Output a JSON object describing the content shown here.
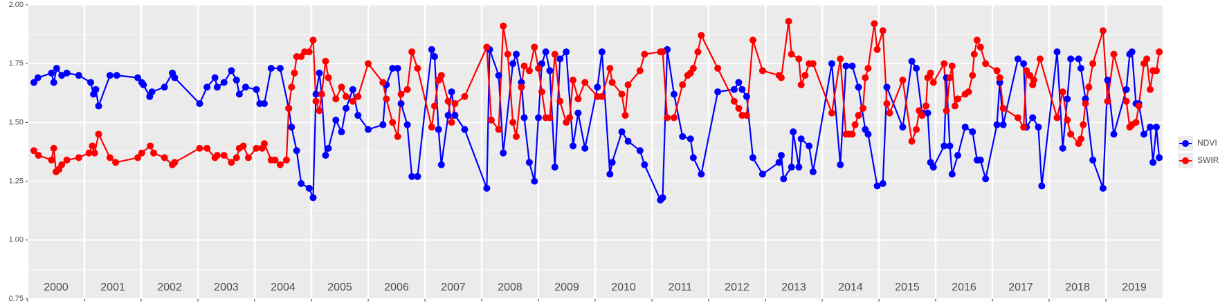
{
  "chart_data": {
    "type": "line",
    "xlim": [
      2000,
      2020
    ],
    "xticks": [
      2000,
      2001,
      2002,
      2003,
      2004,
      2005,
      2006,
      2007,
      2008,
      2009,
      2010,
      2011,
      2012,
      2013,
      2014,
      2015,
      2016,
      2017,
      2018,
      2019
    ],
    "ylim": [
      0.75,
      2.0
    ],
    "yticks": [
      {
        "value": 0.75,
        "label": "0.75"
      },
      {
        "value": 1.0,
        "label": "1.00"
      },
      {
        "value": 1.25,
        "label": "1.25"
      },
      {
        "value": 1.5,
        "label": "1.50"
      },
      {
        "value": 1.75,
        "label": "1.75"
      },
      {
        "value": 2.0,
        "label": "2.00"
      }
    ],
    "grid": true,
    "legend": "right",
    "series": [
      {
        "name": "NDVI",
        "color": "#0000ff",
        "x": [
          2000.11,
          2000.18,
          2000.42,
          2000.46,
          2000.51,
          2000.6,
          2000.69,
          2000.9,
          2001.11,
          2001.16,
          2001.2,
          2001.25,
          2001.45,
          2001.57,
          2001.94,
          2002.01,
          2002.04,
          2002.15,
          2002.19,
          2002.41,
          2002.55,
          2002.59,
          2003.03,
          2003.16,
          2003.3,
          2003.34,
          2003.46,
          2003.59,
          2003.68,
          2003.73,
          2003.84,
          2004.03,
          2004.09,
          2004.17,
          2004.29,
          2004.45,
          2004.6,
          2004.65,
          2004.74,
          2004.82,
          2004.96,
          2005.03,
          2005.08,
          2005.14,
          2005.18,
          2005.25,
          2005.3,
          2005.43,
          2005.53,
          2005.61,
          2005.73,
          2005.82,
          2006.0,
          2006.26,
          2006.32,
          2006.43,
          2006.52,
          2006.58,
          2006.69,
          2006.77,
          2006.87,
          2007.12,
          2007.17,
          2007.24,
          2007.29,
          2007.41,
          2007.47,
          2007.53,
          2007.7,
          2008.09,
          2008.14,
          2008.3,
          2008.38,
          2008.55,
          2008.61,
          2008.7,
          2008.75,
          2008.84,
          2008.93,
          2009.0,
          2009.06,
          2009.13,
          2009.2,
          2009.29,
          2009.38,
          2009.49,
          2009.61,
          2009.7,
          2009.82,
          2010.04,
          2010.12,
          2010.26,
          2010.3,
          2010.47,
          2010.58,
          2010.79,
          2010.87,
          2011.15,
          2011.19,
          2011.27,
          2011.39,
          2011.54,
          2011.68,
          2011.73,
          2011.87,
          2012.16,
          2012.45,
          2012.53,
          2012.59,
          2012.67,
          2012.78,
          2012.95,
          2013.24,
          2013.28,
          2013.32,
          2013.46,
          2013.49,
          2013.59,
          2013.63,
          2013.77,
          2013.84,
          2014.17,
          2014.32,
          2014.42,
          2014.53,
          2014.64,
          2014.76,
          2014.81,
          2014.97,
          2015.07,
          2015.14,
          2015.42,
          2015.58,
          2015.66,
          2015.76,
          2015.86,
          2015.91,
          2015.96,
          2016.15,
          2016.19,
          2016.25,
          2016.29,
          2016.39,
          2016.52,
          2016.65,
          2016.73,
          2016.79,
          2016.88,
          2017.08,
          2017.13,
          2017.19,
          2017.45,
          2017.55,
          2017.6,
          2017.71,
          2017.81,
          2017.87,
          2018.14,
          2018.24,
          2018.32,
          2018.38,
          2018.52,
          2018.56,
          2018.64,
          2018.77,
          2018.95,
          2019.03,
          2019.14,
          2019.36,
          2019.42,
          2019.46,
          2019.53,
          2019.58,
          2019.67,
          2019.78,
          2019.83,
          2019.89,
          2019.94
        ],
        "values": [
          1.67,
          1.69,
          1.71,
          1.67,
          1.73,
          1.7,
          1.71,
          1.7,
          1.67,
          1.62,
          1.64,
          1.57,
          1.7,
          1.7,
          1.69,
          1.67,
          1.66,
          1.61,
          1.63,
          1.65,
          1.71,
          1.69,
          1.58,
          1.65,
          1.69,
          1.65,
          1.67,
          1.72,
          1.68,
          1.62,
          1.65,
          1.64,
          1.58,
          1.58,
          1.73,
          1.73,
          1.56,
          1.48,
          1.38,
          1.24,
          1.22,
          1.18,
          1.62,
          1.71,
          1.62,
          1.36,
          1.39,
          1.51,
          1.46,
          1.56,
          1.64,
          1.53,
          1.47,
          1.49,
          1.66,
          1.73,
          1.73,
          1.58,
          1.49,
          1.27,
          1.27,
          1.81,
          1.78,
          1.47,
          1.32,
          1.53,
          1.63,
          1.53,
          1.47,
          1.22,
          1.81,
          1.7,
          1.37,
          1.75,
          1.79,
          1.67,
          1.52,
          1.33,
          1.25,
          1.52,
          1.75,
          1.8,
          1.72,
          1.31,
          1.77,
          1.8,
          1.4,
          1.54,
          1.39,
          1.65,
          1.8,
          1.28,
          1.33,
          1.46,
          1.42,
          1.38,
          1.32,
          1.17,
          1.18,
          1.81,
          1.62,
          1.44,
          1.43,
          1.35,
          1.28,
          1.63,
          1.64,
          1.67,
          1.64,
          1.61,
          1.35,
          1.28,
          1.33,
          1.36,
          1.26,
          1.31,
          1.46,
          1.31,
          1.43,
          1.4,
          1.29,
          1.75,
          1.32,
          1.74,
          1.74,
          1.65,
          1.47,
          1.45,
          1.23,
          1.24,
          1.65,
          1.48,
          1.76,
          1.73,
          1.54,
          1.54,
          1.33,
          1.31,
          1.4,
          1.69,
          1.4,
          1.28,
          1.36,
          1.48,
          1.46,
          1.34,
          1.34,
          1.26,
          1.49,
          1.67,
          1.49,
          1.77,
          1.75,
          1.48,
          1.52,
          1.48,
          1.23,
          1.8,
          1.39,
          1.6,
          1.77,
          1.77,
          1.73,
          1.6,
          1.34,
          1.22,
          1.68,
          1.45,
          1.64,
          1.79,
          1.8,
          1.58,
          1.58,
          1.45,
          1.48,
          1.33,
          1.48,
          1.35
        ]
      },
      {
        "name": "SWIR",
        "color": "#ff0000",
        "x": [
          2000.11,
          2000.19,
          2000.42,
          2000.46,
          2000.5,
          2000.55,
          2000.6,
          2000.69,
          2000.9,
          2001.08,
          2001.14,
          2001.18,
          2001.25,
          2001.45,
          2001.55,
          2001.94,
          2002.01,
          2002.16,
          2002.22,
          2002.41,
          2002.55,
          2002.59,
          2003.03,
          2003.16,
          2003.3,
          2003.34,
          2003.46,
          2003.59,
          2003.68,
          2003.73,
          2003.8,
          2003.89,
          2004.03,
          2004.13,
          2004.17,
          2004.29,
          2004.36,
          2004.45,
          2004.56,
          2004.6,
          2004.65,
          2004.7,
          2004.74,
          2004.82,
          2004.88,
          2004.96,
          2005.03,
          2005.08,
          2005.14,
          2005.18,
          2005.25,
          2005.3,
          2005.43,
          2005.53,
          2005.61,
          2005.73,
          2005.82,
          2006.0,
          2006.26,
          2006.32,
          2006.43,
          2006.52,
          2006.58,
          2006.69,
          2006.77,
          2006.87,
          2007.12,
          2007.17,
          2007.24,
          2007.29,
          2007.41,
          2007.47,
          2007.53,
          2007.7,
          2008.09,
          2008.17,
          2008.3,
          2008.38,
          2008.46,
          2008.55,
          2008.61,
          2008.7,
          2008.75,
          2008.84,
          2008.93,
          2009.0,
          2009.06,
          2009.13,
          2009.2,
          2009.29,
          2009.38,
          2009.49,
          2009.55,
          2009.61,
          2009.7,
          2009.82,
          2010.04,
          2010.12,
          2010.26,
          2010.3,
          2010.47,
          2010.53,
          2010.58,
          2010.79,
          2010.87,
          2011.15,
          2011.19,
          2011.27,
          2011.39,
          2011.54,
          2011.63,
          2011.68,
          2011.73,
          2011.81,
          2011.87,
          2012.16,
          2012.45,
          2012.53,
          2012.59,
          2012.67,
          2012.78,
          2012.95,
          2013.24,
          2013.28,
          2013.41,
          2013.46,
          2013.59,
          2013.63,
          2013.7,
          2013.77,
          2013.84,
          2014.17,
          2014.32,
          2014.42,
          2014.47,
          2014.53,
          2014.58,
          2014.64,
          2014.72,
          2014.76,
          2014.81,
          2014.92,
          2014.97,
          2015.07,
          2015.14,
          2015.19,
          2015.42,
          2015.58,
          2015.66,
          2015.71,
          2015.76,
          2015.83,
          2015.86,
          2015.91,
          2015.96,
          2016.15,
          2016.19,
          2016.25,
          2016.29,
          2016.34,
          2016.39,
          2016.52,
          2016.58,
          2016.65,
          2016.68,
          2016.73,
          2016.79,
          2016.88,
          2017.08,
          2017.13,
          2017.19,
          2017.45,
          2017.55,
          2017.6,
          2017.66,
          2017.71,
          2017.73,
          2017.84,
          2018.14,
          2018.24,
          2018.32,
          2018.38,
          2018.52,
          2018.56,
          2018.6,
          2018.64,
          2018.7,
          2018.77,
          2018.95,
          2019.03,
          2019.14,
          2019.36,
          2019.42,
          2019.46,
          2019.53,
          2019.58,
          2019.67,
          2019.72,
          2019.78,
          2019.83,
          2019.89,
          2019.94
        ],
        "values": [
          1.38,
          1.36,
          1.34,
          1.39,
          1.29,
          1.3,
          1.32,
          1.34,
          1.35,
          1.37,
          1.4,
          1.37,
          1.45,
          1.35,
          1.33,
          1.35,
          1.37,
          1.4,
          1.37,
          1.35,
          1.32,
          1.33,
          1.39,
          1.39,
          1.35,
          1.36,
          1.36,
          1.33,
          1.35,
          1.39,
          1.4,
          1.35,
          1.39,
          1.39,
          1.41,
          1.34,
          1.34,
          1.32,
          1.34,
          1.56,
          1.65,
          1.71,
          1.78,
          1.78,
          1.8,
          1.8,
          1.85,
          1.59,
          1.55,
          1.62,
          1.76,
          1.69,
          1.6,
          1.65,
          1.61,
          1.59,
          1.61,
          1.75,
          1.67,
          1.6,
          1.5,
          1.44,
          1.62,
          1.64,
          1.8,
          1.73,
          1.48,
          1.57,
          1.68,
          1.7,
          1.59,
          1.5,
          1.58,
          1.61,
          1.82,
          1.51,
          1.47,
          1.91,
          1.79,
          1.5,
          1.44,
          1.65,
          1.74,
          1.72,
          1.82,
          1.73,
          1.63,
          1.52,
          1.52,
          1.79,
          1.59,
          1.5,
          1.52,
          1.68,
          1.6,
          1.67,
          1.61,
          1.61,
          1.73,
          1.67,
          1.62,
          1.53,
          1.66,
          1.72,
          1.79,
          1.8,
          1.8,
          1.52,
          1.52,
          1.66,
          1.7,
          1.71,
          1.73,
          1.8,
          1.87,
          1.73,
          1.59,
          1.56,
          1.53,
          1.53,
          1.85,
          1.72,
          1.7,
          1.69,
          1.93,
          1.79,
          1.77,
          1.66,
          1.7,
          1.75,
          1.75,
          1.54,
          1.77,
          1.45,
          1.45,
          1.45,
          1.49,
          1.53,
          1.56,
          1.69,
          1.73,
          1.92,
          1.81,
          1.89,
          1.58,
          1.54,
          1.68,
          1.42,
          1.47,
          1.55,
          1.53,
          1.57,
          1.69,
          1.71,
          1.67,
          1.75,
          1.55,
          1.69,
          1.74,
          1.57,
          1.6,
          1.62,
          1.63,
          1.7,
          1.79,
          1.85,
          1.82,
          1.75,
          1.72,
          1.69,
          1.56,
          1.52,
          1.48,
          1.72,
          1.7,
          1.66,
          1.68,
          1.77,
          1.52,
          1.63,
          1.51,
          1.45,
          1.41,
          1.43,
          1.49,
          1.58,
          1.65,
          1.75,
          1.89,
          1.59,
          1.79,
          1.59,
          1.48,
          1.49,
          1.5,
          1.57,
          1.75,
          1.77,
          1.64,
          1.72,
          1.72,
          1.8
        ]
      }
    ]
  }
}
